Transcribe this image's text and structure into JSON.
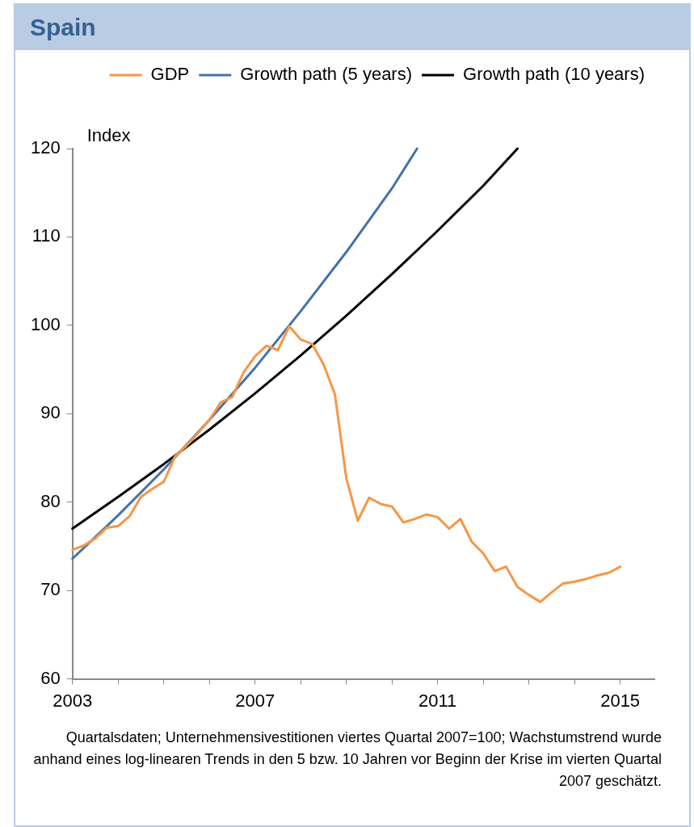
{
  "chart_data": {
    "type": "line",
    "title": "Spain",
    "ylabel": "Index",
    "xlim": [
      2003,
      2015.75
    ],
    "xticks": [
      2003,
      {
        "value": 2004,
        "label": null
      },
      {
        "value": 2005,
        "label": null
      },
      {
        "value": 2006,
        "label": null
      },
      2007,
      {
        "value": 2008,
        "label": null
      },
      {
        "value": 2009,
        "label": null
      },
      {
        "value": 2010,
        "label": null
      },
      2011,
      {
        "value": 2012,
        "label": null
      },
      {
        "value": 2013,
        "label": null
      },
      {
        "value": 2014,
        "label": null
      },
      2015
    ],
    "ylim": [
      60,
      120
    ],
    "yticks": [
      60,
      70,
      80,
      90,
      100,
      110,
      120
    ],
    "grid": false,
    "legend": "top",
    "marker": "none",
    "line_style": "solid",
    "series": [
      {
        "name": "GDP",
        "color": "#f79646",
        "x": [
          2003,
          2003.25,
          2003.5,
          2003.75,
          2004,
          2004.25,
          2004.5,
          2004.75,
          2005,
          2005.25,
          2005.5,
          2005.75,
          2006,
          2006.25,
          2006.5,
          2006.75,
          2007,
          2007.25,
          2007.5,
          2007.75,
          2008,
          2008.25,
          2008.5,
          2008.75,
          2009,
          2009.25,
          2009.5,
          2009.75,
          2010,
          2010.25,
          2010.5,
          2010.75,
          2011,
          2011.25,
          2011.5,
          2011.75,
          2012,
          2012.25,
          2012.5,
          2012.75,
          2013,
          2013.25,
          2013.5,
          2013.75,
          2014,
          2014.25,
          2014.5,
          2014.75,
          2015
        ],
        "values": [
          74.6,
          75.1,
          75.9,
          77.1,
          77.3,
          78.4,
          80.6,
          81.5,
          82.3,
          85.2,
          86.4,
          87.8,
          89.3,
          91.3,
          91.9,
          94.7,
          96.5,
          97.7,
          97.2,
          99.9,
          98.4,
          97.9,
          95.6,
          92.2,
          82.7,
          77.9,
          80.5,
          79.8,
          79.5,
          77.7,
          78.1,
          78.6,
          78.3,
          77.0,
          78.1,
          75.5,
          74.2,
          72.2,
          72.7,
          70.4,
          69.5,
          68.7,
          69.8,
          70.8,
          71.0,
          71.3,
          71.7,
          72.0,
          72.7
        ]
      },
      {
        "name": "Growth path (5 years)",
        "color": "#4472a8",
        "x": [
          2003,
          2004,
          2005,
          2006,
          2007,
          2007.75,
          2008,
          2009,
          2010,
          2010.55
        ],
        "values": [
          73.6,
          78.5,
          83.7,
          89.3,
          95.2,
          100,
          101.6,
          108.3,
          115.5,
          120
        ]
      },
      {
        "name": "Growth path (10 years)",
        "color": "#000000",
        "x": [
          2003,
          2004,
          2005,
          2006,
          2007,
          2008,
          2009,
          2010,
          2011,
          2012,
          2012.75
        ],
        "values": [
          77.0,
          80.6,
          84.3,
          88.2,
          92.3,
          96.6,
          101.1,
          105.8,
          110.7,
          115.8,
          120
        ]
      }
    ],
    "annotations": [
      "Quartalsdaten; Unternehmensivestitionen viertes Quartal 2007=100; Wachstumstrend wurde anhand eines log-linearen Trends in den 5 bzw. 10 Jahren vor Beginn der Krise im vierten Quartal 2007 geschätzt."
    ]
  }
}
